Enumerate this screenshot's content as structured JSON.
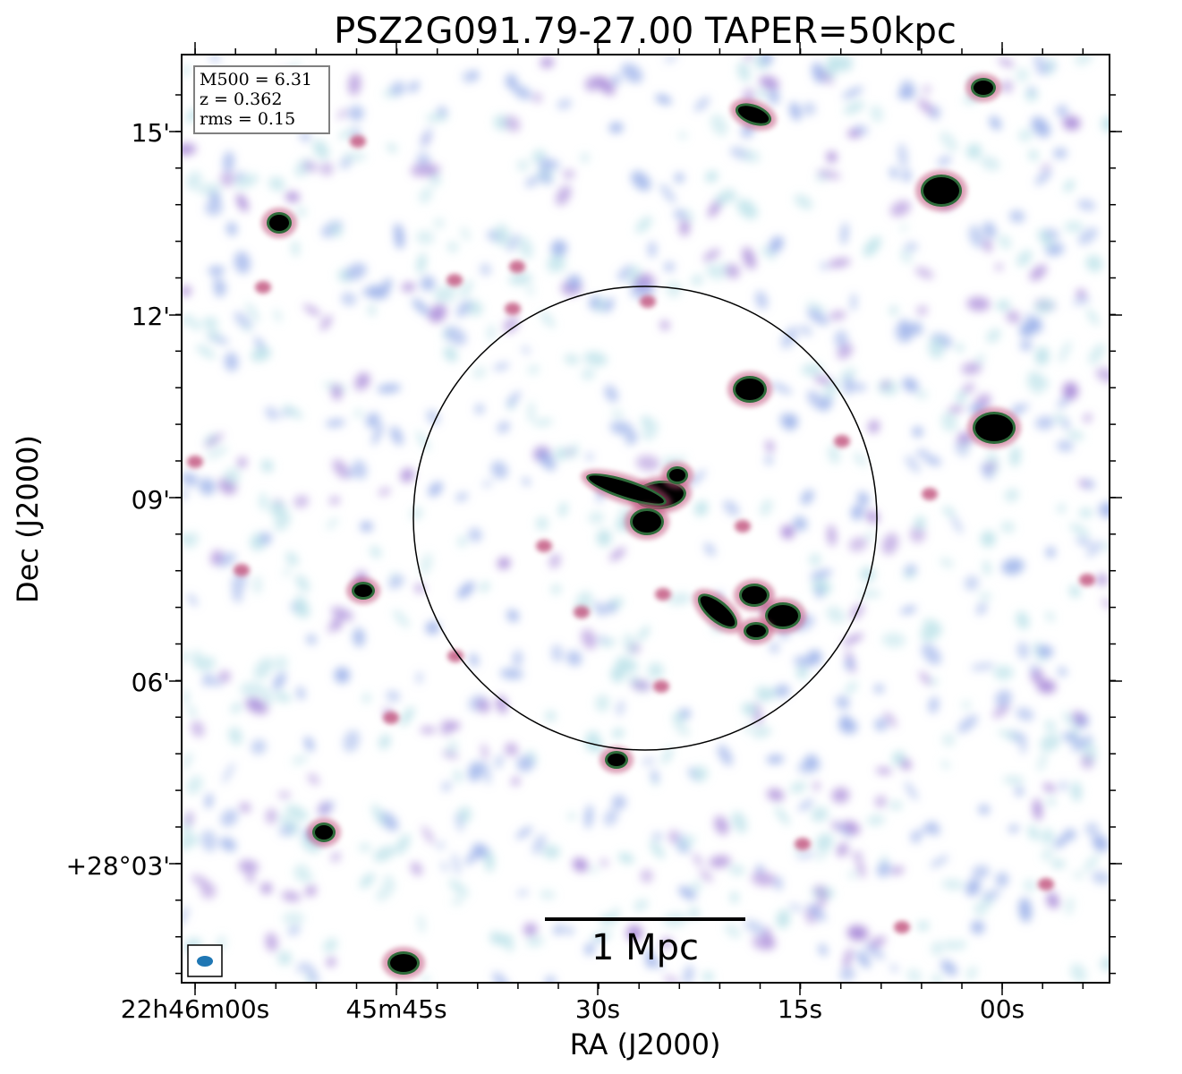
{
  "title": "PSZ2G091.79-27.00 TAPER=50kpc",
  "info_box": {
    "mass": "M500 = 6.31",
    "redshift": "z = 0.362",
    "rms": "rms = 0.15"
  },
  "scale_bar_label": "1 Mpc",
  "xaxis": {
    "label": "RA (J2000)",
    "ticks": [
      "22h46m00s",
      "45m45s",
      "30s",
      "15s",
      "00s"
    ]
  },
  "yaxis": {
    "label": "Dec (J2000)",
    "ticks": [
      "15'",
      "12'",
      "09'",
      "06'",
      "+28°03'"
    ]
  },
  "colors": {
    "source_core": "#000000",
    "source_ring": "#2e6b3a",
    "emission_pink": "#c0507a",
    "emission_violet": "#a98ad8",
    "emission_blue": "#9fb4ea",
    "emission_cyan": "#bfe3ea",
    "beam": "#1f77b4"
  }
}
